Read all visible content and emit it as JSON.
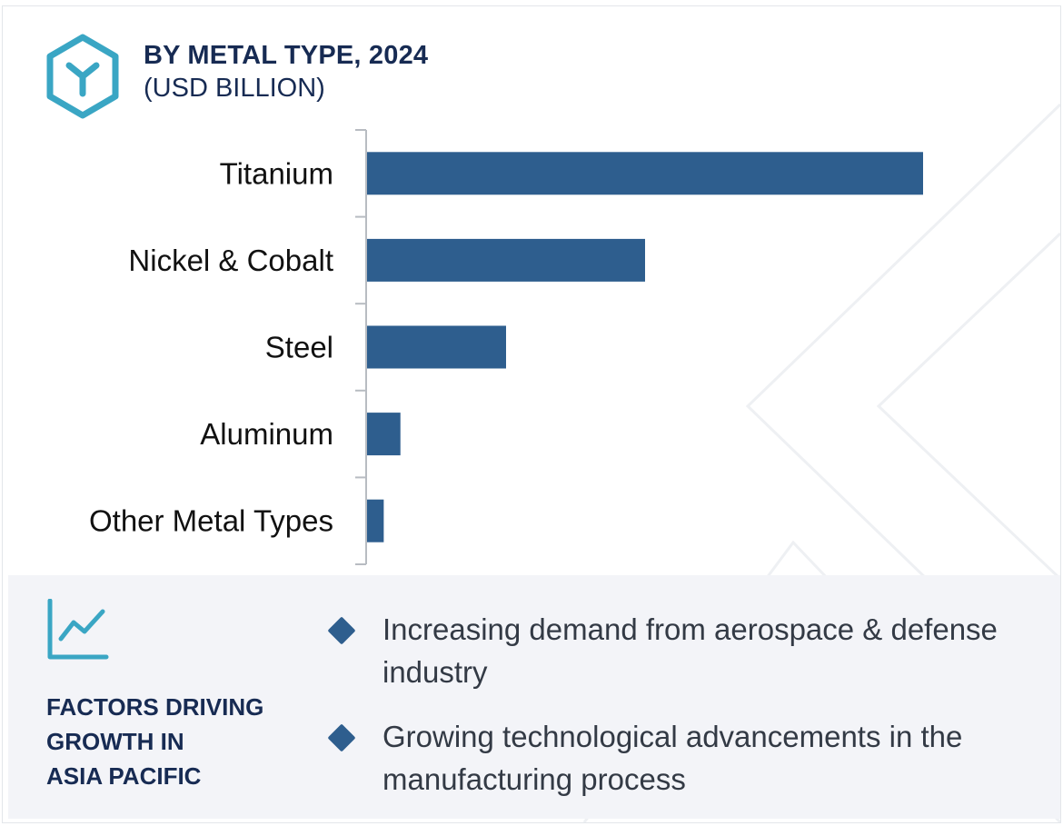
{
  "header": {
    "title": "BY METAL TYPE, 2024",
    "subtitle": "(USD BILLION)",
    "logo_icon": "hexagon-y-logo-icon"
  },
  "colors": {
    "bar": "#2e5e8e",
    "title": "#172b53",
    "accent": "#3aa6c4",
    "panel_bg": "#f3f4f8"
  },
  "chart_data": {
    "type": "bar",
    "orientation": "horizontal",
    "title": "BY METAL TYPE, 2024",
    "subtitle": "(USD BILLION)",
    "categories": [
      "Titanium",
      "Nickel & Cobalt",
      "Steel",
      "Aluminum",
      "Other Metal Types"
    ],
    "values": [
      100,
      50,
      25,
      6,
      3
    ],
    "xlim": [
      0,
      100
    ],
    "grid": false,
    "legend": "none"
  },
  "factors": {
    "icon": "trend-chart-icon",
    "title_lines": [
      "FACTORS DRIVING",
      "GROWTH IN",
      "ASIA PACIFIC"
    ],
    "items": [
      {
        "icon": "diamond-bullet-icon",
        "text": "Increasing demand from aerospace & defense industry"
      },
      {
        "icon": "diamond-bullet-icon",
        "text": "Growing technological advancements in the manufacturing process"
      }
    ]
  }
}
